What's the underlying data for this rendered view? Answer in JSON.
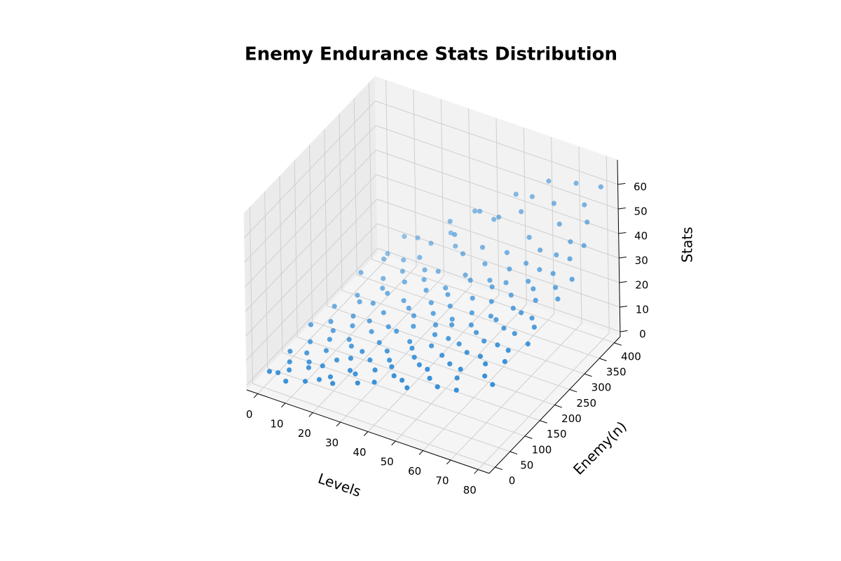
{
  "chart_data": {
    "type": "scatter3d",
    "title": "Enemy Endurance Stats Distribution",
    "xlabel": "Levels",
    "ylabel": "Enemy(n)",
    "zlabel": "Stats",
    "color": "#2e8bd6",
    "grid": true,
    "xlim": [
      -4,
      84
    ],
    "ylim": [
      -20,
      420
    ],
    "zlim": [
      -2,
      70
    ],
    "xticks": [
      0,
      10,
      20,
      30,
      40,
      50,
      60,
      70,
      80
    ],
    "yticks": [
      0,
      50,
      100,
      150,
      200,
      250,
      300,
      350,
      400
    ],
    "zticks": [
      0,
      10,
      20,
      30,
      40,
      50,
      60
    ],
    "x": [
      0,
      1,
      1,
      2,
      2,
      3,
      3,
      4,
      4,
      5,
      5,
      6,
      6,
      7,
      7,
      8,
      8,
      9,
      9,
      10,
      10,
      11,
      11,
      12,
      12,
      13,
      13,
      14,
      14,
      15,
      15,
      16,
      16,
      17,
      17,
      18,
      18,
      19,
      19,
      20,
      20,
      21,
      21,
      22,
      22,
      23,
      23,
      24,
      24,
      25,
      25,
      26,
      26,
      27,
      27,
      28,
      28,
      29,
      29,
      30,
      30,
      31,
      31,
      32,
      32,
      33,
      33,
      34,
      34,
      35,
      35,
      36,
      36,
      37,
      37,
      38,
      38,
      39,
      39,
      40,
      40,
      41,
      41,
      42,
      42,
      43,
      43,
      44,
      44,
      45,
      45,
      46,
      46,
      47,
      47,
      48,
      48,
      49,
      49,
      50,
      50,
      51,
      51,
      52,
      52,
      53,
      53,
      54,
      54,
      55,
      55,
      56,
      56,
      57,
      57,
      58,
      58,
      59,
      59,
      60,
      60,
      61,
      61,
      62,
      62,
      63,
      63,
      64,
      64,
      65,
      65,
      66,
      66,
      67,
      67,
      68,
      68,
      69,
      69,
      70,
      70,
      71,
      71,
      72,
      72,
      73,
      73,
      74,
      74,
      75,
      75,
      76,
      76,
      77,
      77,
      78,
      78,
      79,
      79,
      80,
      80
    ],
    "y": [
      20,
      80,
      150,
      30,
      220,
      300,
      60,
      120,
      380,
      40,
      180,
      260,
      90,
      340,
      10,
      160,
      400,
      70,
      240,
      130,
      310,
      50,
      200,
      360,
      100,
      280,
      20,
      170,
      390,
      60,
      230,
      320,
      140,
      30,
      260,
      190,
      80,
      350,
      120,
      40,
      290,
      210,
      370,
      90,
      160,
      330,
      20,
      250,
      110,
      400,
      60,
      180,
      300,
      140,
      380,
      50,
      230,
      320,
      90,
      270,
      170,
      360,
      30,
      210,
      120,
      340,
      70,
      250,
      190,
      390,
      100,
      280,
      40,
      150,
      330,
      220,
      80,
      370,
      260,
      130,
      310,
      60,
      200,
      350,
      240,
      110,
      380,
      170,
      290,
      50,
      330,
      210,
      140,
      360,
      90,
      260,
      190,
      400,
      30,
      300,
      160,
      230,
      80,
      340,
      120,
      280,
      380,
      200,
      60,
      320,
      150,
      250,
      390,
      100,
      290,
      180,
      360,
      40,
      220,
      330,
      130,
      270,
      400,
      90,
      210,
      350,
      160,
      300,
      60,
      240,
      380,
      120,
      320,
      190,
      30,
      280,
      370,
      150,
      230,
      340,
      100,
      260,
      400,
      180,
      310,
      70,
      360,
      220,
      140,
      390,
      290,
      110,
      330,
      200,
      380,
      50,
      270,
      350,
      160,
      300,
      400
    ],
    "z": [
      2,
      3,
      5,
      1,
      4,
      8,
      2,
      3,
      6,
      2,
      4,
      5,
      3,
      10,
      2,
      4,
      12,
      3,
      6,
      5,
      7,
      4,
      6,
      9,
      5,
      8,
      3,
      7,
      15,
      5,
      9,
      11,
      6,
      4,
      10,
      8,
      6,
      14,
      7,
      5,
      12,
      10,
      18,
      7,
      9,
      13,
      6,
      11,
      8,
      20,
      7,
      10,
      14,
      9,
      28,
      8,
      12,
      16,
      9,
      15,
      11,
      22,
      8,
      13,
      10,
      30,
      9,
      14,
      12,
      34,
      10,
      17,
      9,
      12,
      25,
      15,
      11,
      38,
      18,
      13,
      20,
      11,
      14,
      27,
      17,
      13,
      35,
      15,
      22,
      12,
      24,
      17,
      15,
      40,
      14,
      20,
      18,
      45,
      13,
      23,
      17,
      19,
      15,
      30,
      16,
      24,
      42,
      19,
      15,
      27,
      18,
      23,
      48,
      17,
      26,
      20,
      36,
      16,
      22,
      30,
      19,
      25,
      55,
      18,
      23,
      34,
      21,
      28,
      19,
      25,
      50,
      21,
      31,
      24,
      19,
      29,
      44,
      23,
      26,
      36,
      22,
      28,
      58,
      25,
      33,
      22,
      40,
      27,
      24,
      52,
      31,
      24,
      38,
      27,
      47,
      23,
      30,
      42,
      26,
      35,
      60
    ]
  }
}
